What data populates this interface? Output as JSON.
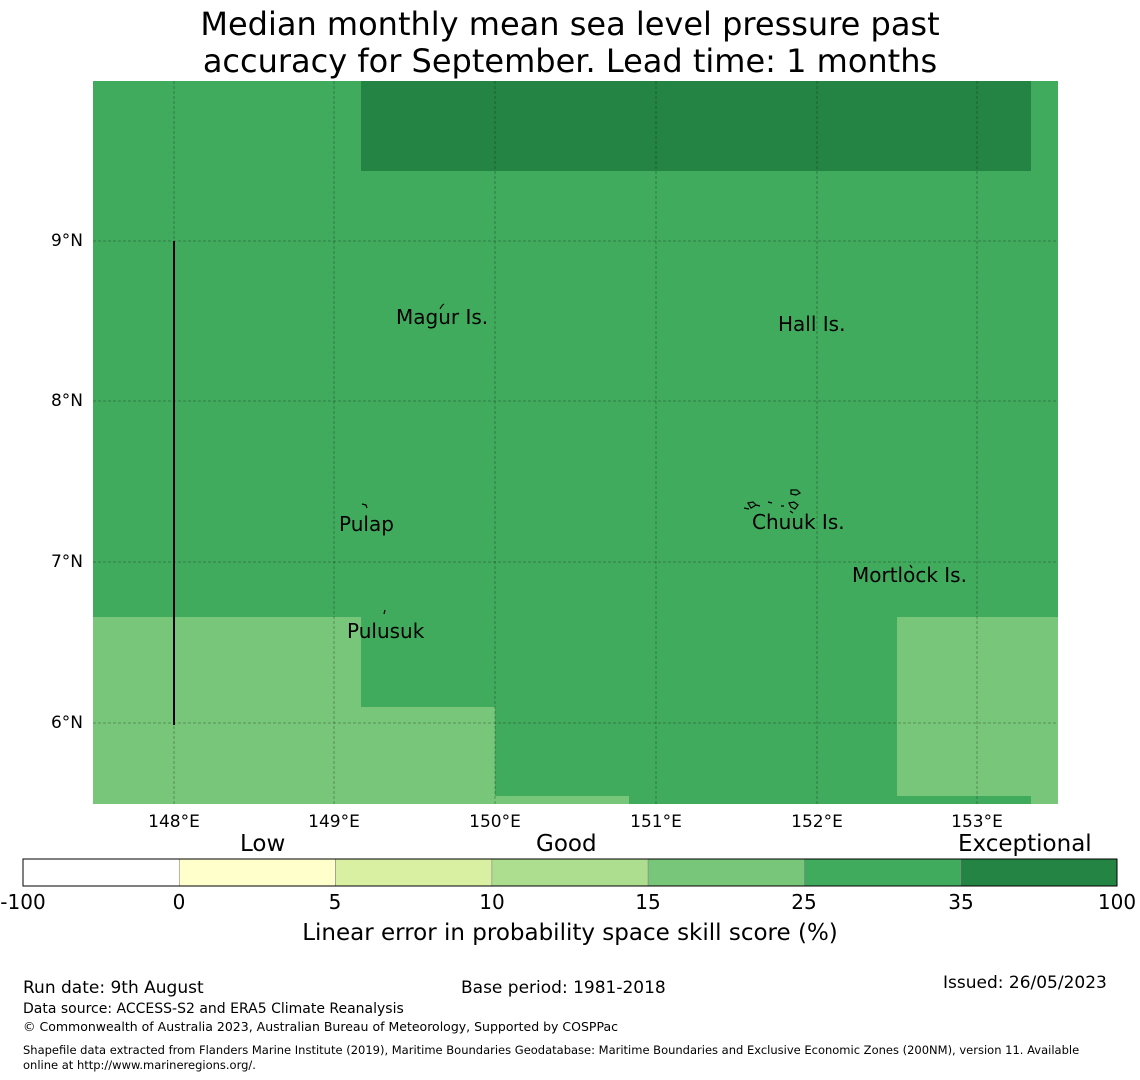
{
  "title": {
    "line1": "Median monthly mean sea level pressure past",
    "line2": "accuracy for September. Lead time: 1 months"
  },
  "map": {
    "latitudes": [
      "9°N",
      "8°N",
      "7°N",
      "6°N"
    ],
    "longitudes": [
      "148°E",
      "149°E",
      "150°E",
      "151°E",
      "152°E",
      "153°E"
    ],
    "places": [
      "Magur Is.",
      "Hall Is.",
      "Pulap",
      "Chuuk Is.",
      "Mortlock Is.",
      "Pulusuk"
    ]
  },
  "colorbar": {
    "categories": [
      "Low",
      "Good",
      "Exceptional"
    ],
    "ticks": [
      "-100",
      "0",
      "5",
      "10",
      "15",
      "25",
      "35",
      "100"
    ],
    "colors": [
      "#ffffff",
      "#ffffcc",
      "#d9f0a3",
      "#addd8e",
      "#78c679",
      "#41ab5d",
      "#238443"
    ],
    "label": "Linear error in probability space skill score (%)"
  },
  "footer": {
    "run_date": "Run date: 9th August",
    "base_period": "Base period: 1981-2018",
    "issued": "Issued: 26/05/2023",
    "data_source": "Data source: ACCESS-S2 and ERA5 Climate Reanalysis",
    "copyright": "© Commonwealth of Australia 2023, Australian Bureau of Meteorology, Supported by COSPPac",
    "shapefile_line1": "Shapefile data extracted from Flanders Marine Institute (2019), Maritime Boundaries Geodatabase: Maritime Boundaries and Exclusive Economic Zones (200NM), version 11. Available",
    "shapefile_line2": "online at http://www.marineregions.org/."
  }
}
